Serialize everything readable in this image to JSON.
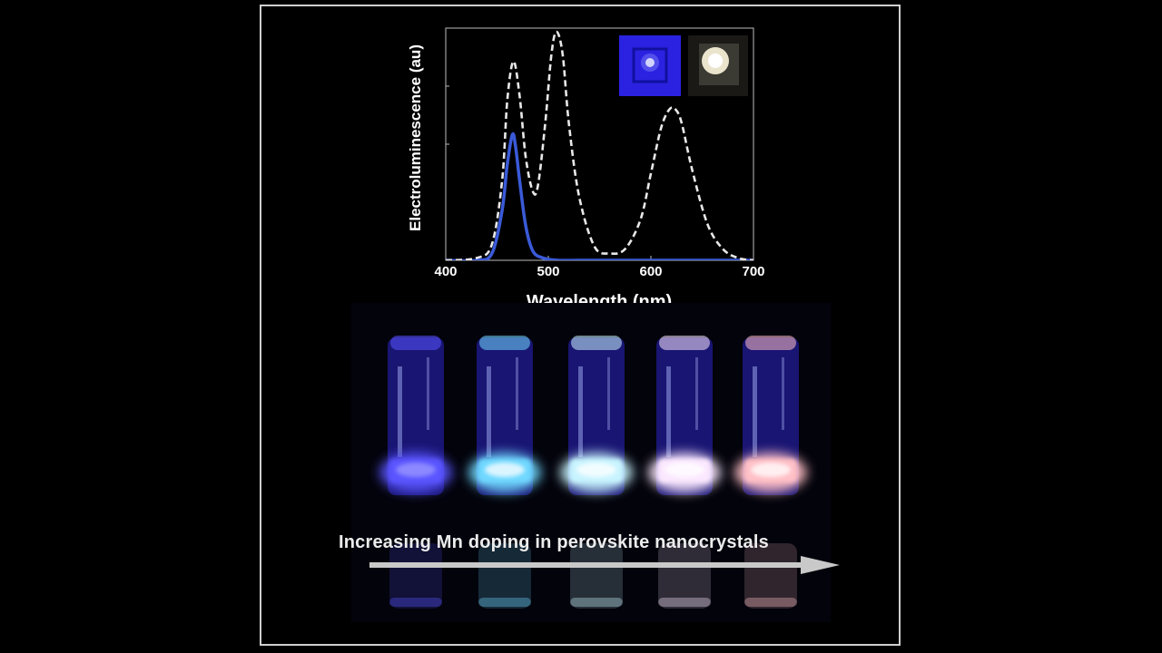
{
  "chart_data": {
    "type": "line",
    "ylabel": "Electroluminescence (au)",
    "xlabel": "Wavelength (nm)",
    "xlim": [
      400,
      700
    ],
    "ylim": [
      0,
      1.0
    ],
    "xticks": [
      "400",
      "500",
      "600",
      "700"
    ],
    "series": [
      {
        "style": "solid",
        "color": "#3a5ad8",
        "x": [
          400,
          430,
          445,
          455,
          460,
          465,
          468,
          472,
          478,
          485,
          495,
          510,
          530,
          560,
          700
        ],
        "values": [
          0.0,
          0.0,
          0.03,
          0.22,
          0.42,
          0.55,
          0.5,
          0.35,
          0.15,
          0.04,
          0.01,
          0.0,
          0.0,
          0.0,
          0.0
        ]
      },
      {
        "style": "dashed",
        "color": "#e8e8e8",
        "x": [
          400,
          430,
          445,
          455,
          460,
          466,
          472,
          478,
          485,
          490,
          497,
          503,
          508,
          514,
          520,
          530,
          545,
          560,
          575,
          590,
          600,
          610,
          618,
          624,
          630,
          640,
          655,
          670,
          685,
          700
        ],
        "values": [
          0.0,
          0.01,
          0.07,
          0.35,
          0.7,
          0.87,
          0.72,
          0.45,
          0.3,
          0.33,
          0.6,
          0.9,
          1.0,
          0.9,
          0.6,
          0.28,
          0.06,
          0.03,
          0.05,
          0.18,
          0.38,
          0.58,
          0.66,
          0.66,
          0.6,
          0.4,
          0.16,
          0.05,
          0.01,
          0.0
        ]
      }
    ]
  },
  "photo": {
    "caption": "Increasing Mn doping in perovskite nanocrystals",
    "vial_colors": [
      "#5a54ff",
      "#6fd8ff",
      "#c8f4ff",
      "#fbe8ff",
      "#ffc0c6"
    ]
  }
}
